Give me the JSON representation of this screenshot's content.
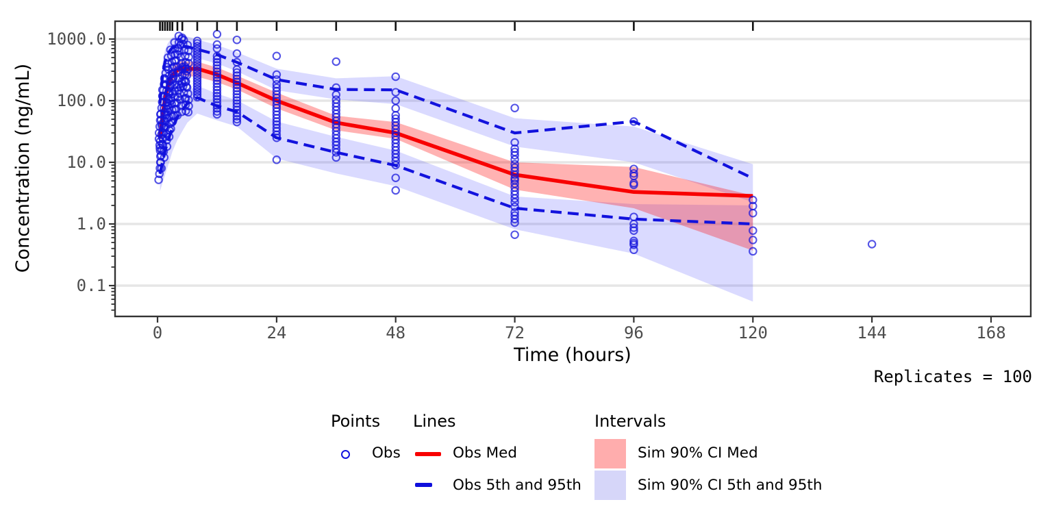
{
  "figure": {
    "x_title": "Time (hours)",
    "y_title": "Concentration (ng/mL)",
    "replicates_note": "Replicates = 100"
  },
  "axes": {
    "x_ticks": [
      0,
      24,
      48,
      72,
      96,
      120,
      144,
      168
    ],
    "y_ticks": [
      {
        "value": 1000,
        "label": "1000.0"
      },
      {
        "value": 100,
        "label": "100.0"
      },
      {
        "value": 10,
        "label": "10.0"
      },
      {
        "value": 1,
        "label": "1.0"
      },
      {
        "value": 0.1,
        "label": "0.1"
      }
    ]
  },
  "colors": {
    "obs_red": "#f80000",
    "obs_blue": "#1212dd",
    "sim_band_pink": "#ff0000",
    "sim_band_blue": "#2222ff",
    "gridline": "#e6e6e6",
    "panel_border": "#333333",
    "tick_text": "#4d4d4d",
    "rug": "#111111"
  },
  "legend": {
    "points_header": "Points",
    "lines_header": "Lines",
    "intervals_header": "Intervals",
    "obs_label": "Obs",
    "obs_med_label": "Obs Med",
    "obs_5_95_label": "Obs 5th and 95th",
    "sim_ci_med_label": "Sim 90% CI Med",
    "sim_ci_5_95_label": "Sim 90% CI 5th and 95th"
  },
  "chart_data": {
    "type": "scatter",
    "subtype": "visual-predictive-check",
    "xlabel": "Time (hours)",
    "ylabel": "Concentration (ng/mL)",
    "x_range_hours": [
      -8,
      176
    ],
    "y_range_log": [
      0.032,
      1950
    ],
    "y_scale": "log10",
    "grid": "horizontal-major-only",
    "legend_position": "bottom",
    "rug_times": [
      0.5,
      1,
      1.5,
      2,
      2.5,
      3,
      4,
      5,
      8,
      12,
      16,
      24,
      36,
      48,
      72,
      96,
      120
    ],
    "percentiles": {
      "times": [
        0.5,
        1,
        1.5,
        2,
        2.5,
        3,
        4,
        5,
        6,
        8,
        12,
        16,
        24,
        36,
        48,
        72,
        96,
        120
      ],
      "obs_median": [
        25,
        55,
        110,
        165,
        215,
        260,
        315,
        335,
        325,
        330,
        265,
        195,
        100,
        44,
        30,
        6.3,
        3.3,
        2.85
      ],
      "obs_p95": [
        90,
        250,
        430,
        560,
        650,
        720,
        770,
        770,
        750,
        680,
        560,
        420,
        220,
        152,
        150,
        30,
        46,
        5.5
      ],
      "obs_p5": [
        6.5,
        10,
        15,
        21,
        28,
        36,
        54,
        70,
        90,
        112,
        82,
        66,
        25,
        14.5,
        8.9,
        1.8,
        1.2,
        1.0
      ],
      "sim_ci_med_hi": [
        34,
        74,
        148,
        220,
        285,
        345,
        415,
        440,
        430,
        430,
        345,
        255,
        135,
        57,
        45,
        10,
        8.4,
        2.9
      ],
      "sim_ci_med_lo": [
        18,
        40,
        82,
        122,
        160,
        195,
        240,
        255,
        250,
        245,
        200,
        152,
        75,
        33,
        24,
        3.6,
        1.8,
        0.37
      ],
      "sim_ci_p95_hi": [
        150,
        400,
        650,
        830,
        960,
        1060,
        1150,
        1150,
        1100,
        980,
        800,
        610,
        330,
        230,
        250,
        52,
        38,
        9.3
      ],
      "sim_ci_p95_lo": [
        58,
        145,
        260,
        350,
        430,
        490,
        545,
        560,
        545,
        490,
        400,
        300,
        148,
        105,
        88,
        18,
        10,
        2.25
      ],
      "sim_ci_p5_hi": [
        11,
        17,
        25,
        34,
        45,
        58,
        88,
        112,
        142,
        175,
        130,
        102,
        46,
        26,
        15.5,
        2.8,
        2.1,
        2.0
      ],
      "sim_ci_p5_lo": [
        3.4,
        4.6,
        6.2,
        8.2,
        11,
        15,
        23,
        32,
        44,
        62,
        48,
        38,
        11.5,
        6.6,
        4.1,
        0.82,
        0.33,
        0.055
      ]
    },
    "points": [
      {
        "t": 0.4,
        "jitter": 0.18,
        "values": [
          5.2,
          6.5,
          8,
          10,
          12.5,
          15.5,
          19,
          24,
          30,
          38,
          48,
          60,
          22,
          17
        ]
      },
      {
        "t": 0.8,
        "jitter": 0.2,
        "values": [
          8,
          10,
          13,
          16,
          20,
          25,
          31,
          39,
          49,
          61,
          76,
          95,
          120,
          150,
          42,
          28
        ]
      },
      {
        "t": 1.2,
        "jitter": 0.2,
        "values": [
          12,
          15,
          19,
          24,
          30,
          38,
          48,
          60,
          75,
          94,
          118,
          148,
          185,
          230,
          65,
          36
        ]
      },
      {
        "t": 1.7,
        "jitter": 0.22,
        "values": [
          18,
          23,
          29,
          37,
          46,
          58,
          73,
          92,
          115,
          145,
          180,
          225,
          280,
          350,
          95,
          52
        ]
      },
      {
        "t": 2.2,
        "jitter": 0.22,
        "values": [
          26,
          33,
          42,
          53,
          66,
          83,
          104,
          130,
          163,
          205,
          255,
          320,
          400,
          500,
          140,
          75
        ]
      },
      {
        "t": 2.7,
        "jitter": 0.25,
        "values": [
          35,
          44,
          56,
          70,
          88,
          110,
          138,
          173,
          217,
          272,
          340,
          425,
          535,
          670,
          185,
          100
        ]
      },
      {
        "t": 3.3,
        "jitter": 0.25,
        "values": [
          46,
          58,
          73,
          91,
          114,
          143,
          180,
          225,
          282,
          355,
          445,
          560,
          700,
          880,
          245,
          130
        ]
      },
      {
        "t": 4.0,
        "jitter": 0.3,
        "values": [
          58,
          73,
          92,
          115,
          145,
          182,
          228,
          286,
          360,
          450,
          565,
          710,
          890,
          1120,
          310,
          165
        ]
      },
      {
        "t": 4.7,
        "jitter": 0.3,
        "values": [
          66,
          83,
          104,
          130,
          164,
          205,
          258,
          323,
          405,
          510,
          640,
          800,
          1000,
          1050,
          350,
          190
        ]
      },
      {
        "t": 5.4,
        "jitter": 0.3,
        "values": [
          68,
          86,
          108,
          135,
          170,
          213,
          267,
          335,
          420,
          530,
          660,
          830,
          960,
          360,
          200,
          110
        ]
      },
      {
        "t": 6.0,
        "jitter": 0.3,
        "values": [
          65,
          82,
          103,
          130,
          163,
          205,
          257,
          323,
          405,
          510,
          640,
          800,
          300,
          170
        ]
      },
      {
        "t": 8,
        "jitter": 0,
        "values": [
          114,
          126,
          139,
          154,
          170,
          188,
          208,
          230,
          254,
          281,
          310,
          343,
          380,
          420,
          464,
          513,
          567,
          627,
          693,
          766,
          850,
          930
        ]
      },
      {
        "t": 12,
        "jitter": 0,
        "values": [
          60,
          67,
          75,
          84,
          94,
          106,
          119,
          133,
          149,
          167,
          188,
          211,
          236,
          265,
          297,
          333,
          374,
          419,
          470,
          527,
          700,
          815,
          1200
        ]
      },
      {
        "t": 16,
        "jitter": 0,
        "values": [
          45,
          50,
          56,
          63,
          71,
          80,
          90,
          101,
          113,
          127,
          143,
          160,
          180,
          202,
          227,
          255,
          286,
          321,
          420,
          580,
          970
        ]
      },
      {
        "t": 24,
        "jitter": 0,
        "values": [
          11,
          25,
          28,
          32,
          36,
          41,
          46,
          52,
          59,
          67,
          76,
          86,
          98,
          111,
          126,
          143,
          162,
          184,
          220,
          265,
          530
        ]
      },
      {
        "t": 36,
        "jitter": 0,
        "values": [
          12,
          14.5,
          16.5,
          19,
          21.5,
          24.5,
          28,
          32,
          36.5,
          41.5,
          47,
          54,
          61,
          70,
          80,
          91,
          104,
          125,
          163,
          430
        ]
      },
      {
        "t": 48,
        "jitter": 0,
        "values": [
          3.5,
          5.6,
          9,
          10.5,
          12,
          13.7,
          15.6,
          17.8,
          20.3,
          23.2,
          26.5,
          30.2,
          34.5,
          39.4,
          45,
          51,
          58,
          75,
          100,
          137,
          245
        ]
      },
      {
        "t": 72,
        "jitter": 0,
        "values": [
          0.67,
          1.05,
          1.2,
          1.37,
          1.55,
          1.9,
          2.25,
          2.6,
          3.0,
          3.4,
          3.9,
          4.5,
          5.1,
          5.5,
          6.3,
          7.2,
          8.2,
          9.3,
          11.1,
          13,
          14.7,
          16.7,
          21,
          76
        ]
      },
      {
        "t": 96,
        "jitter": 0,
        "values": [
          0.38,
          0.46,
          0.49,
          0.53,
          0.78,
          0.87,
          1.0,
          1.3,
          4.3,
          4.6,
          6.0,
          6.6,
          7.8,
          46
        ]
      },
      {
        "t": 120,
        "jitter": 0,
        "values": [
          0.36,
          0.55,
          0.78,
          1.5,
          1.95,
          2.45
        ]
      },
      {
        "t": 144,
        "jitter": 0,
        "values": [
          0.47
        ]
      }
    ]
  }
}
